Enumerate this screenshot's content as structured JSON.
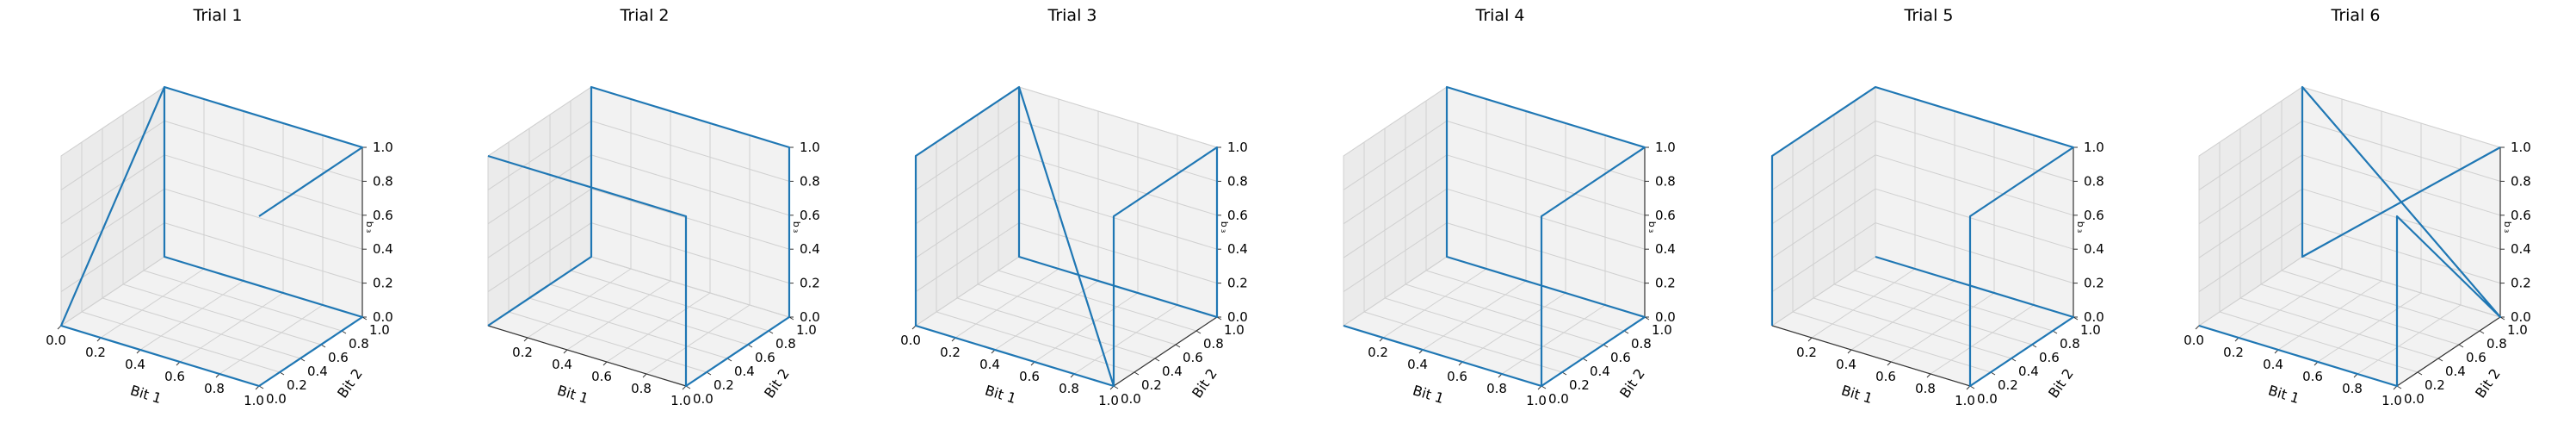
{
  "chart_data": [
    {
      "type": "line3d",
      "title": "Trial 1",
      "xlabel": "Bit 1",
      "ylabel": "Bit 2",
      "zlabel": "b ₃",
      "xlim": [
        0,
        1
      ],
      "ylim": [
        0,
        1
      ],
      "zlim": [
        0,
        1
      ],
      "xticks": [
        "0.0",
        "0.2",
        "0.4",
        "0.6",
        "0.8",
        "1.0"
      ],
      "yticks": [
        "0.0",
        "0.2",
        "0.4",
        "0.6",
        "0.8",
        "1.0"
      ],
      "zticks": [
        "0.0",
        "0.2",
        "0.4",
        "0.6",
        "0.8",
        "1.0"
      ],
      "grid": true,
      "line_color": "#1f77b4",
      "series": [
        {
          "x": [
            0,
            0,
            1,
            1,
            0,
            0,
            1,
            1
          ],
          "y": [
            1,
            0,
            0,
            1,
            1,
            1,
            1,
            0
          ],
          "z": [
            1,
            0,
            0,
            0,
            0,
            1,
            1,
            1
          ]
        }
      ]
    },
    {
      "type": "line3d",
      "title": "Trial 2",
      "xlabel": "Bit 1",
      "ylabel": "Bit 2",
      "zlabel": "b ₃",
      "xlim": [
        0,
        1
      ],
      "ylim": [
        0,
        1
      ],
      "zlim": [
        0,
        1
      ],
      "xticks": [
        "0.2",
        "0.4",
        "0.6",
        "0.8",
        "1.0"
      ],
      "yticks": [
        "0.0",
        "0.2",
        "0.4",
        "0.6",
        "0.8",
        "1.0"
      ],
      "zticks": [
        "0.0",
        "0.2",
        "0.4",
        "0.6",
        "0.8",
        "1.0"
      ],
      "grid": true,
      "line_color": "#1f77b4",
      "series": [
        {
          "x": [
            0,
            0,
            1,
            1,
            1,
            1,
            0,
            0,
            0
          ],
          "y": [
            0,
            0,
            0,
            0,
            1,
            1,
            1,
            1,
            0
          ],
          "z": [
            1,
            1,
            1,
            0,
            0,
            1,
            1,
            0,
            0
          ]
        }
      ]
    },
    {
      "type": "line3d",
      "title": "Trial 3",
      "xlabel": "Bit 1",
      "ylabel": "Bit 2",
      "zlabel": "b ₃",
      "xlim": [
        0,
        1
      ],
      "ylim": [
        0,
        1
      ],
      "zlim": [
        0,
        1
      ],
      "xticks": [
        "0.0",
        "0.2",
        "0.4",
        "0.6",
        "0.8",
        "1.0"
      ],
      "yticks": [
        "0.0",
        "0.2",
        "0.4",
        "0.6",
        "0.8",
        "1.0"
      ],
      "zticks": [
        "0.0",
        "0.2",
        "0.4",
        "0.6",
        "0.8",
        "1.0"
      ],
      "grid": true,
      "line_color": "#1f77b4",
      "series": [
        {
          "x": [
            1,
            0,
            0,
            0,
            0,
            1,
            1,
            1,
            1,
            0
          ],
          "y": [
            0,
            0,
            0,
            1,
            1,
            1,
            1,
            0,
            0,
            1
          ],
          "z": [
            0,
            0,
            1,
            1,
            0,
            0,
            1,
            1,
            0,
            1
          ]
        }
      ]
    },
    {
      "type": "line3d",
      "title": "Trial 4",
      "xlabel": "Bit 1",
      "ylabel": "Bit 2",
      "zlabel": "b ₃",
      "xlim": [
        0,
        1
      ],
      "ylim": [
        0,
        1
      ],
      "zlim": [
        0,
        1
      ],
      "xticks": [
        "0.2",
        "0.4",
        "0.6",
        "0.8",
        "1.0"
      ],
      "yticks": [
        "0.0",
        "0.2",
        "0.4",
        "0.6",
        "0.8",
        "1.0"
      ],
      "zticks": [
        "0.0",
        "0.2",
        "0.4",
        "0.6",
        "0.8",
        "1.0"
      ],
      "grid": true,
      "line_color": "#1f77b4",
      "series": [
        {
          "x": [
            0,
            1,
            1,
            1,
            0,
            0,
            1,
            1
          ],
          "y": [
            0,
            0,
            0,
            1,
            1,
            1,
            1,
            0
          ],
          "z": [
            0,
            0,
            1,
            1,
            1,
            0,
            0,
            0
          ]
        }
      ]
    },
    {
      "type": "line3d",
      "title": "Trial 5",
      "xlabel": "Bit 1",
      "ylabel": "Bit 2",
      "zlabel": "b ₃",
      "xlim": [
        0,
        1
      ],
      "ylim": [
        0,
        1
      ],
      "zlim": [
        0,
        1
      ],
      "xticks": [
        "0.2",
        "0.4",
        "0.6",
        "0.8",
        "1.0"
      ],
      "yticks": [
        "0.0",
        "0.2",
        "0.4",
        "0.6",
        "0.8",
        "1.0"
      ],
      "zticks": [
        "0.0",
        "0.2",
        "0.4",
        "0.6",
        "0.8",
        "1.0"
      ],
      "grid": true,
      "line_color": "#1f77b4",
      "series": [
        {
          "x": [
            0,
            0,
            0,
            1,
            1,
            1,
            1,
            0
          ],
          "y": [
            0,
            0,
            1,
            1,
            0,
            0,
            1,
            1
          ],
          "z": [
            0,
            1,
            1,
            1,
            1,
            0,
            0,
            0
          ]
        }
      ]
    },
    {
      "type": "line3d",
      "title": "Trial 6",
      "xlabel": "Bit 1",
      "ylabel": "Bit 2",
      "zlabel": "b ₃",
      "xlim": [
        0,
        1
      ],
      "ylim": [
        0,
        1
      ],
      "zlim": [
        0,
        1
      ],
      "xticks": [
        "0.0",
        "0.2",
        "0.4",
        "0.6",
        "0.8",
        "1.0"
      ],
      "yticks": [
        "0.0",
        "0.2",
        "0.4",
        "0.6",
        "0.8",
        "1.0"
      ],
      "zticks": [
        "0.0",
        "0.2",
        "0.4",
        "0.6",
        "0.8",
        "1.0"
      ],
      "grid": true,
      "line_color": "#1f77b4",
      "series": [
        {
          "x": [
            0,
            1,
            1,
            1,
            1,
            0,
            0,
            1
          ],
          "y": [
            0,
            0,
            0,
            1,
            1,
            1,
            1,
            1
          ],
          "z": [
            0,
            0,
            1,
            0,
            0,
            1,
            0,
            1
          ]
        }
      ]
    }
  ]
}
